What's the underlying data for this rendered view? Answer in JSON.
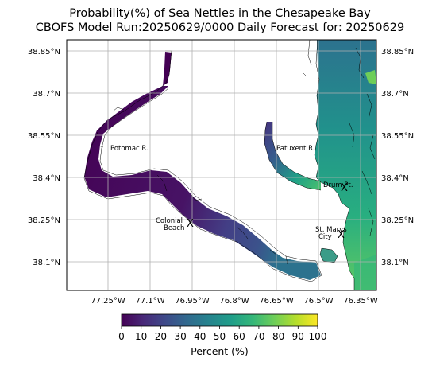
{
  "title": {
    "line1": "Probability(%) of Sea Nettles in the Chesapeake Bay",
    "line2": "CBOFS Model Run:20250629/0000 Daily Forecast for: 20250629"
  },
  "map": {
    "lat_ticks": [
      "38.85°N",
      "38.7°N",
      "38.55°N",
      "38.4°N",
      "38.25°N",
      "38.1°N"
    ],
    "lon_ticks": [
      "77.25°W",
      "77.1°W",
      "76.95°W",
      "76.8°W",
      "76.65°W",
      "76.5°W",
      "76.35°W"
    ],
    "places": [
      {
        "id": "potomac",
        "lines": [
          "Potomac R."
        ]
      },
      {
        "id": "patuxent",
        "lines": [
          "Patuxent R."
        ]
      },
      {
        "id": "drum",
        "lines": [
          "Drum Pt."
        ]
      },
      {
        "id": "colonial",
        "lines": [
          "Colonial",
          "Beach"
        ]
      },
      {
        "id": "stmarys",
        "lines": [
          "St. Marys",
          "City"
        ]
      }
    ],
    "markers": [
      {
        "id": "drum",
        "symbol": "X"
      },
      {
        "id": "colonial",
        "symbol": "X"
      },
      {
        "id": "stmarys",
        "symbol": "X"
      }
    ],
    "grid": true,
    "coastline_color": "#000000"
  },
  "colorbar": {
    "colormap": "viridis",
    "min": 0,
    "max": 100,
    "ticks": [
      "0",
      "10",
      "20",
      "30",
      "40",
      "50",
      "60",
      "70",
      "80",
      "90",
      "100"
    ],
    "label": "Percent (%)",
    "colors": [
      "#440154",
      "#482878",
      "#3e4989",
      "#31688e",
      "#26828e",
      "#1f9e89",
      "#35b779",
      "#6ece58",
      "#b5de2b",
      "#fde725"
    ]
  }
}
